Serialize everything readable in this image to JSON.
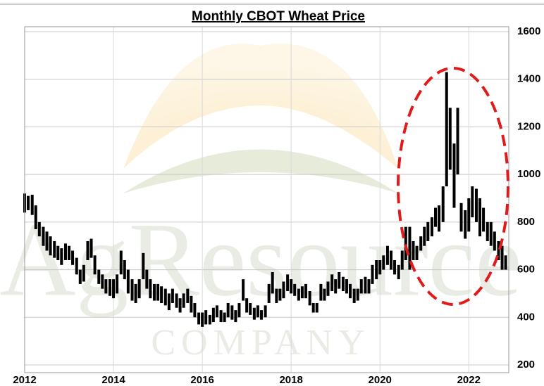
{
  "chart_data": {
    "type": "range_bar",
    "title": "Monthly CBOT Wheat Price",
    "watermark": [
      "AgResource",
      "COMPANY"
    ],
    "x": [
      2012.0,
      2012.08,
      2012.17,
      2012.25,
      2012.33,
      2012.42,
      2012.5,
      2012.58,
      2012.67,
      2012.75,
      2012.83,
      2012.92,
      2013.0,
      2013.08,
      2013.17,
      2013.25,
      2013.33,
      2013.42,
      2013.5,
      2013.58,
      2013.67,
      2013.75,
      2013.83,
      2013.92,
      2014.0,
      2014.08,
      2014.17,
      2014.25,
      2014.33,
      2014.42,
      2014.5,
      2014.58,
      2014.67,
      2014.75,
      2014.83,
      2014.92,
      2015.0,
      2015.08,
      2015.17,
      2015.25,
      2015.33,
      2015.42,
      2015.5,
      2015.58,
      2015.67,
      2015.75,
      2015.83,
      2015.92,
      2016.0,
      2016.08,
      2016.17,
      2016.25,
      2016.33,
      2016.42,
      2016.5,
      2016.58,
      2016.67,
      2016.75,
      2016.83,
      2016.92,
      2017.0,
      2017.08,
      2017.17,
      2017.25,
      2017.33,
      2017.42,
      2017.5,
      2017.58,
      2017.67,
      2017.75,
      2017.83,
      2017.92,
      2018.0,
      2018.08,
      2018.17,
      2018.25,
      2018.33,
      2018.42,
      2018.5,
      2018.58,
      2018.67,
      2018.75,
      2018.83,
      2018.92,
      2019.0,
      2019.08,
      2019.17,
      2019.25,
      2019.33,
      2019.42,
      2019.5,
      2019.58,
      2019.67,
      2019.75,
      2019.83,
      2019.92,
      2020.0,
      2020.08,
      2020.17,
      2020.25,
      2020.33,
      2020.42,
      2020.5,
      2020.58,
      2020.67,
      2020.75,
      2020.83,
      2020.92,
      2021.0,
      2021.08,
      2021.17,
      2021.25,
      2021.33,
      2021.42,
      2021.5,
      2021.58,
      2021.67,
      2021.75,
      2021.83,
      2021.92,
      2022.0,
      2022.08,
      2022.17,
      2022.25,
      2022.33,
      2022.42,
      2022.5,
      2022.58,
      2022.67,
      2022.75,
      2022.83
    ],
    "high": [
      920,
      910,
      915,
      870,
      800,
      780,
      760,
      740,
      720,
      700,
      690,
      710,
      700,
      680,
      650,
      600,
      620,
      720,
      730,
      660,
      600,
      580,
      560,
      560,
      560,
      580,
      680,
      640,
      600,
      560,
      540,
      560,
      670,
      600,
      560,
      540,
      540,
      530,
      520,
      500,
      520,
      500,
      480,
      500,
      520,
      490,
      460,
      420,
      420,
      430,
      410,
      440,
      450,
      430,
      420,
      460,
      450,
      430,
      460,
      560,
      480,
      460,
      440,
      450,
      430,
      450,
      540,
      590,
      520,
      520,
      550,
      580,
      560,
      540,
      520,
      530,
      540,
      510,
      460,
      460,
      540,
      520,
      550,
      580,
      560,
      590,
      570,
      560,
      540,
      520,
      520,
      560,
      570,
      560,
      620,
      640,
      640,
      660,
      700,
      680,
      640,
      620,
      680,
      780,
      780,
      720,
      700,
      740,
      780,
      800,
      820,
      860,
      870,
      950,
      1430,
      1280,
      1130,
      1280,
      880,
      850,
      900,
      950,
      940,
      900,
      860,
      800,
      800,
      760,
      720,
      700,
      660
    ],
    "low": [
      840,
      850,
      830,
      770,
      740,
      700,
      680,
      660,
      650,
      640,
      620,
      640,
      640,
      620,
      580,
      540,
      550,
      640,
      650,
      580,
      540,
      520,
      500,
      490,
      480,
      500,
      580,
      560,
      500,
      470,
      460,
      480,
      560,
      520,
      480,
      470,
      470,
      460,
      450,
      430,
      460,
      440,
      420,
      440,
      460,
      420,
      400,
      370,
      360,
      370,
      370,
      380,
      400,
      380,
      380,
      400,
      390,
      380,
      400,
      470,
      420,
      410,
      390,
      400,
      390,
      400,
      460,
      500,
      460,
      470,
      480,
      510,
      500,
      490,
      470,
      480,
      480,
      450,
      420,
      420,
      470,
      470,
      490,
      510,
      500,
      520,
      510,
      500,
      480,
      460,
      470,
      500,
      500,
      500,
      540,
      560,
      580,
      600,
      620,
      600,
      580,
      560,
      600,
      640,
      600,
      640,
      640,
      680,
      700,
      720,
      740,
      780,
      760,
      800,
      950,
      1020,
      860,
      1000,
      760,
      730,
      760,
      820,
      800,
      740,
      760,
      720,
      700,
      680,
      640,
      600,
      600
    ],
    "color": "#000000",
    "xlim": [
      2012,
      2022.9
    ],
    "xticks": [
      2012,
      2014,
      2016,
      2018,
      2020,
      2022
    ],
    "ylim": [
      200,
      1600
    ],
    "yticks": [
      200,
      400,
      600,
      800,
      1000,
      1200,
      1400,
      1600
    ],
    "grid": true
  }
}
